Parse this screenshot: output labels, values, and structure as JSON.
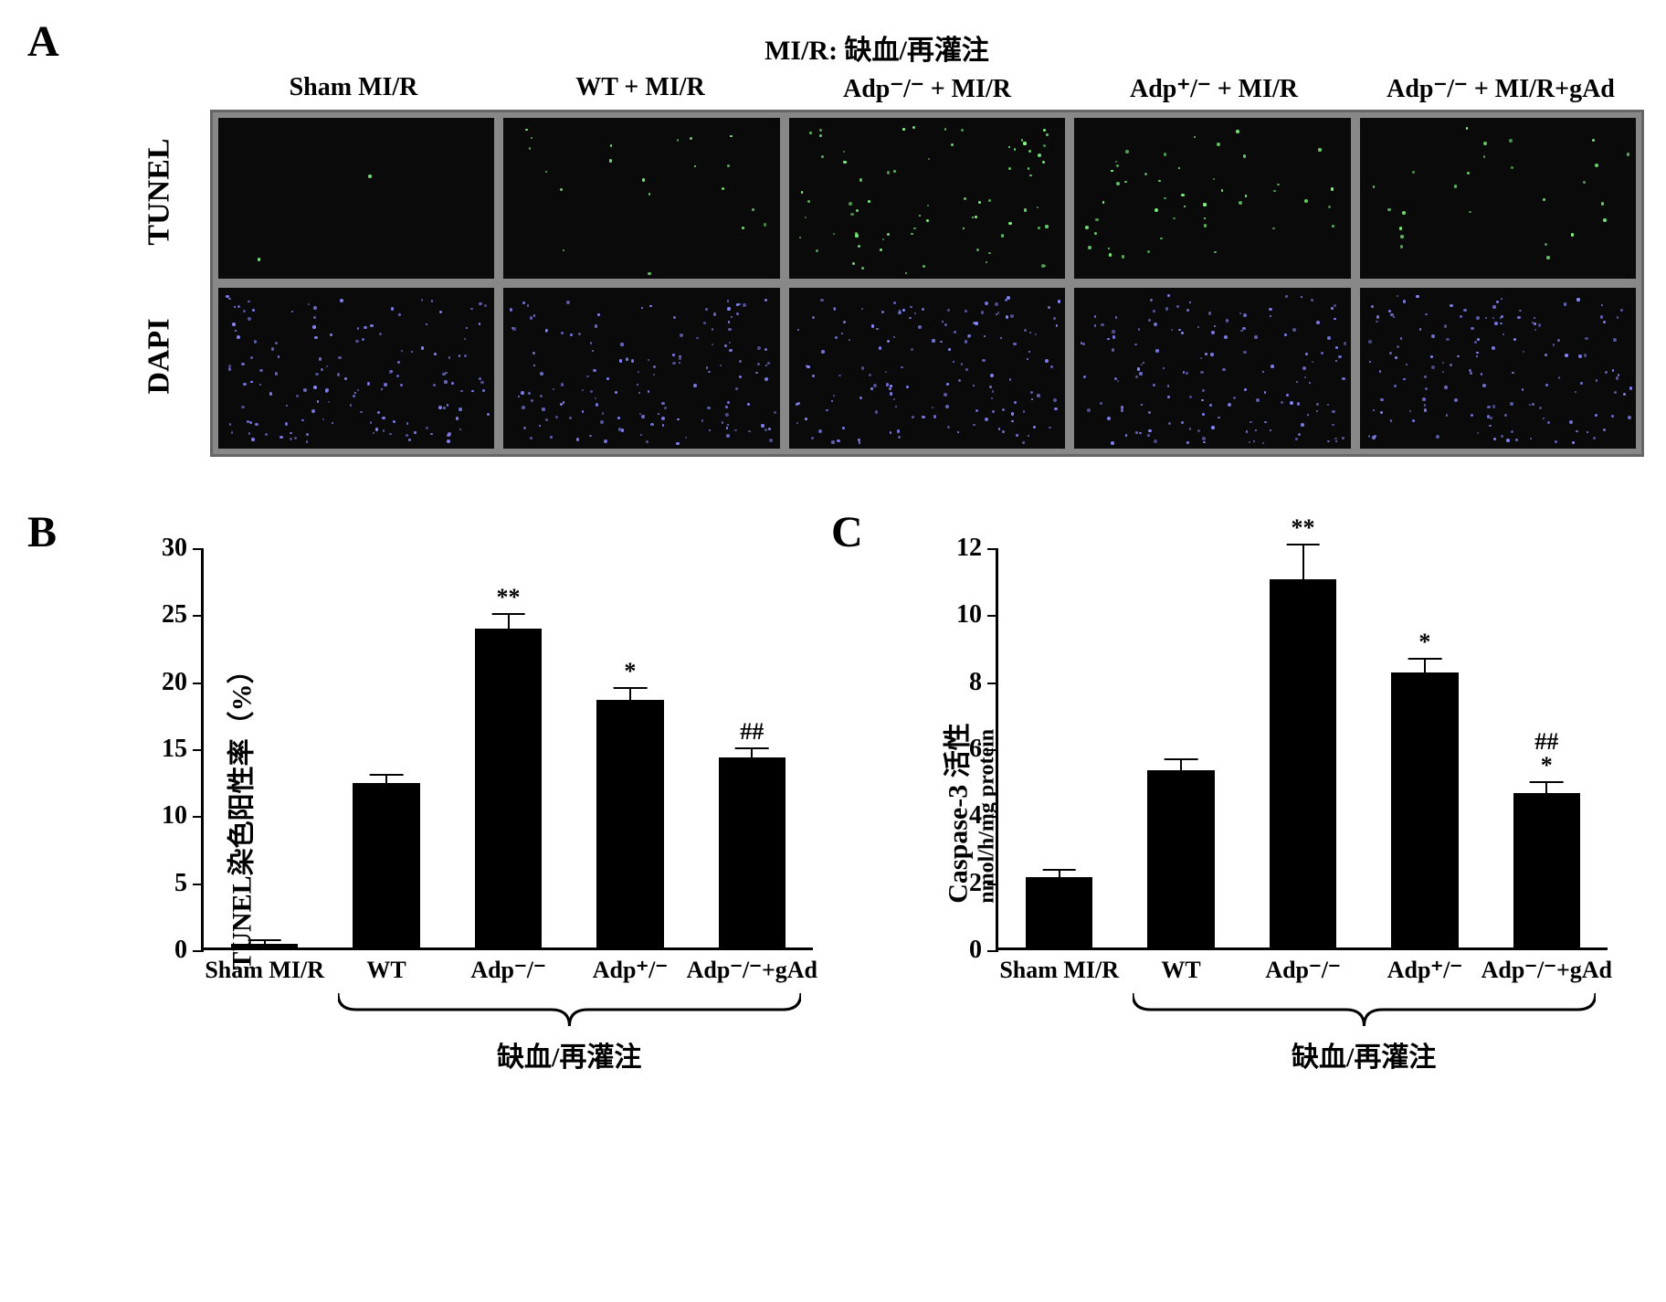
{
  "panelA": {
    "label": "A",
    "top_title": "MI/R: 缺血/再灌注",
    "col_headers": [
      "Sham MI/R",
      "WT + MI/R",
      "Adp⁻/⁻ + MI/R",
      "Adp⁺/⁻ + MI/R",
      "Adp⁻/⁻ + MI/R+gAd"
    ],
    "row_labels": [
      "TUNEL",
      "DAPI"
    ],
    "cell_bg": "#0a0a0a",
    "grid_border": "#888888",
    "tunel_dot_color": "#7fff7f",
    "dapi_dot_color": "#8888ff",
    "tunel_densities": [
      2,
      20,
      70,
      45,
      25
    ],
    "dapi_densities": [
      140,
      140,
      140,
      140,
      140
    ]
  },
  "panelB": {
    "label": "B",
    "y_label": "TUNEL染色阳性率（%）",
    "ylim": [
      0,
      30
    ],
    "ytick_step": 5,
    "bars": [
      {
        "x_label": "Sham MI/R",
        "value": 0.3,
        "error": 0.2,
        "sig": ""
      },
      {
        "x_label": "WT",
        "value": 12.3,
        "error": 0.5,
        "sig": ""
      },
      {
        "x_label": "Adp⁻/⁻",
        "value": 23.8,
        "error": 1.0,
        "sig": "**"
      },
      {
        "x_label": "Adp⁺/⁻",
        "value": 18.5,
        "error": 0.8,
        "sig": "*"
      },
      {
        "x_label": "Adp⁻/⁻+gAd",
        "value": 14.2,
        "error": 0.6,
        "sig": "##"
      }
    ],
    "bar_color": "#000000",
    "brace_label": "缺血/再灌注",
    "brace_span": [
      1,
      4
    ]
  },
  "panelC": {
    "label": "C",
    "y_label_line1": "Caspase-3 活性",
    "y_label_line2": "nmol/h/mg protein",
    "ylim": [
      0,
      12
    ],
    "ytick_step": 2,
    "bars": [
      {
        "x_label": "Sham MI/R",
        "value": 2.1,
        "error": 0.2,
        "sig": ""
      },
      {
        "x_label": "WT",
        "value": 5.3,
        "error": 0.3,
        "sig": ""
      },
      {
        "x_label": "Adp⁻/⁻",
        "value": 11.0,
        "error": 1.0,
        "sig": "**"
      },
      {
        "x_label": "Adp⁺/⁻",
        "value": 8.2,
        "error": 0.4,
        "sig": "*"
      },
      {
        "x_label": "Adp⁻/⁻+gAd",
        "value": 4.6,
        "error": 0.3,
        "sig": "##\n*"
      }
    ],
    "bar_color": "#000000",
    "brace_label": "缺血/再灌注",
    "brace_span": [
      1,
      4
    ]
  },
  "styling": {
    "bg": "#ffffff",
    "axis_color": "#000000",
    "label_fontsize": 30,
    "tick_fontsize": 28,
    "panel_label_fontsize": 48
  }
}
